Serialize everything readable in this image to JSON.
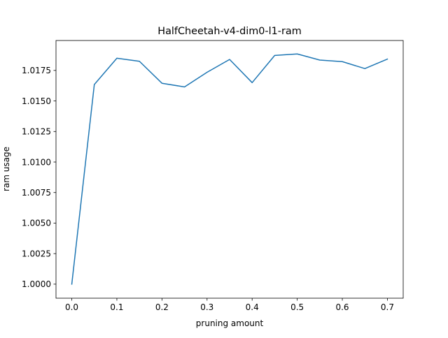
{
  "chart_data": {
    "type": "line",
    "title": "HalfCheetah-v4-dim0-l1-ram",
    "xlabel": "pruning amount",
    "ylabel": "ram usage",
    "xlim": [
      -0.035,
      0.735
    ],
    "ylim": [
      0.99885,
      1.01995
    ],
    "x_ticks": [
      0.0,
      0.1,
      0.2,
      0.3,
      0.4,
      0.5,
      0.6,
      0.7
    ],
    "x_tick_labels": [
      "0.0",
      "0.1",
      "0.2",
      "0.3",
      "0.4",
      "0.5",
      "0.6",
      "0.7"
    ],
    "y_ticks": [
      1.0,
      1.0025,
      1.005,
      1.0075,
      1.01,
      1.0125,
      1.015,
      1.0175
    ],
    "y_tick_labels": [
      "1.0000",
      "1.0025",
      "1.0050",
      "1.0075",
      "1.0100",
      "1.0125",
      "1.0150",
      "1.0175"
    ],
    "grid": false,
    "series": [
      {
        "color": "#1f77b4",
        "x": [
          0.0,
          0.05,
          0.1,
          0.15,
          0.2,
          0.25,
          0.3,
          0.35,
          0.4,
          0.45,
          0.5,
          0.55,
          0.6,
          0.65,
          0.7
        ],
        "y": [
          1.0,
          1.01635,
          1.0185,
          1.01825,
          1.01645,
          1.01615,
          1.01735,
          1.0184,
          1.0165,
          1.01873,
          1.01885,
          1.01835,
          1.01822,
          1.01765,
          1.01843
        ]
      }
    ]
  }
}
